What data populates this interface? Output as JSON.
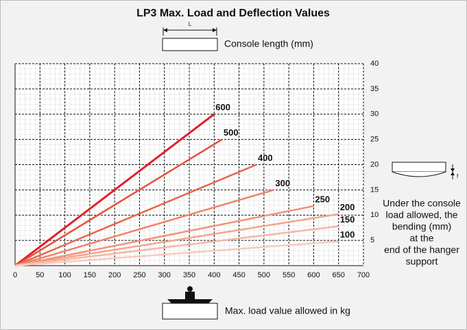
{
  "chart_data": {
    "type": "line",
    "title": "LP3 Max. Load and Deflection Values",
    "top_icon_label": "L",
    "top_caption": "Console length (mm)",
    "x_label": "Max. load value allowed in kg",
    "side_icon_label": "f",
    "side_note": [
      "Under the console",
      "load allowed, the",
      "bending (mm)",
      "at the",
      "end of the hanger",
      "support"
    ],
    "xlim": [
      0,
      700
    ],
    "xticks": [
      0,
      50,
      100,
      150,
      200,
      250,
      300,
      350,
      400,
      450,
      500,
      550,
      600,
      650,
      700
    ],
    "ylim": [
      0,
      40
    ],
    "yticks": [
      5,
      10,
      15,
      20,
      25,
      30,
      35,
      40
    ],
    "grid": true,
    "series": [
      {
        "name": "600",
        "color": "#e0202a",
        "x": [
          0,
          400
        ],
        "values": [
          0,
          30
        ]
      },
      {
        "name": "500",
        "color": "#e6503a",
        "x": [
          0,
          416
        ],
        "values": [
          0,
          25
        ]
      },
      {
        "name": "400",
        "color": "#e8644a",
        "x": [
          0,
          485
        ],
        "values": [
          0,
          20
        ]
      },
      {
        "name": "300",
        "color": "#ef8468",
        "x": [
          0,
          520
        ],
        "values": [
          0,
          15
        ]
      },
      {
        "name": "250",
        "color": "#f09278",
        "x": [
          0,
          600
        ],
        "values": [
          0,
          11.8
        ]
      },
      {
        "name": "200",
        "color": "#f3a48c",
        "x": [
          0,
          650
        ],
        "values": [
          0,
          10.2
        ]
      },
      {
        "name": "150",
        "color": "#f5b6a2",
        "x": [
          0,
          650
        ],
        "values": [
          0,
          7.8
        ]
      },
      {
        "name": "100",
        "color": "#f8cabb",
        "x": [
          0,
          650
        ],
        "values": [
          0,
          4.8
        ]
      }
    ]
  }
}
